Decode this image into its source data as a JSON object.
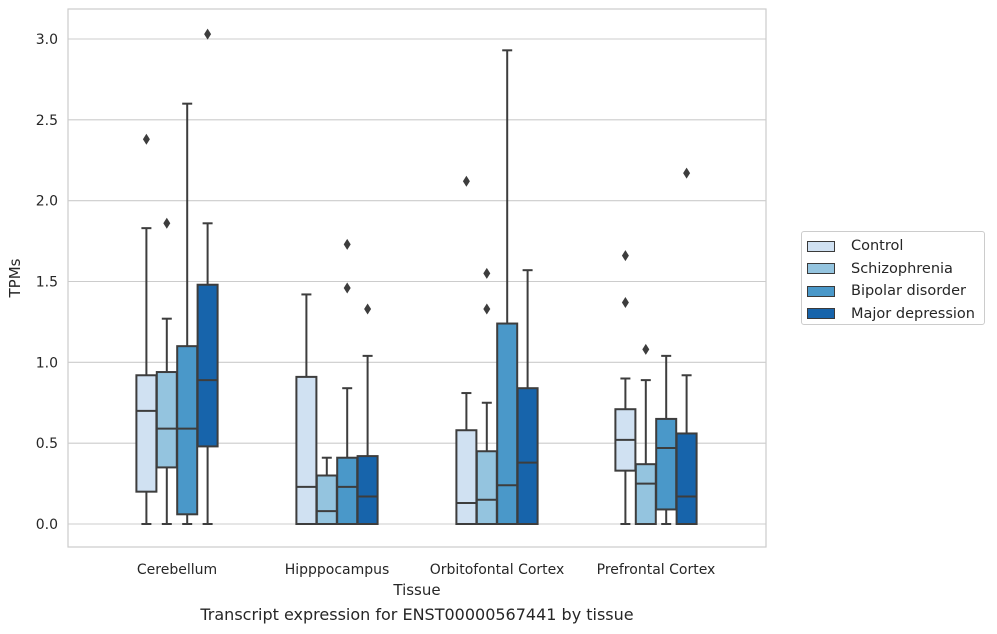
{
  "chart_data": {
    "type": "boxplot",
    "xlabel": "Tissue",
    "ylabel": "TPMs",
    "caption": "Transcript expression for ENST00000567441 by tissue",
    "ylim": [
      -0.15,
      3.2
    ],
    "yticks": [
      0.0,
      0.5,
      1.0,
      1.5,
      2.0,
      2.5,
      3.0
    ],
    "ytick_labels": [
      "0.0",
      "0.5",
      "1.0",
      "1.5",
      "2.0",
      "2.5",
      "3.0"
    ],
    "grid": "horizontal",
    "legend_position": "right",
    "categories": [
      "Cerebellum",
      "Hipppocampus",
      "Orbitofontal Cortex",
      "Prefrontal Cortex"
    ],
    "series": [
      {
        "name": "Control",
        "color": "#d0e1f2",
        "boxes": [
          {
            "whislo": 0.0,
            "q1": 0.2,
            "med": 0.7,
            "q3": 0.92,
            "whishi": 1.83,
            "fliers": [
              2.38
            ]
          },
          {
            "whislo": 0.0,
            "q1": 0.0,
            "med": 0.23,
            "q3": 0.91,
            "whishi": 1.42,
            "fliers": []
          },
          {
            "whislo": 0.0,
            "q1": 0.0,
            "med": 0.13,
            "q3": 0.58,
            "whishi": 0.81,
            "fliers": [
              2.12
            ]
          },
          {
            "whislo": 0.0,
            "q1": 0.33,
            "med": 0.52,
            "q3": 0.71,
            "whishi": 0.9,
            "fliers": [
              1.37,
              1.66
            ]
          }
        ]
      },
      {
        "name": "Schizophrenia",
        "color": "#94c4df",
        "boxes": [
          {
            "whislo": 0.0,
            "q1": 0.35,
            "med": 0.59,
            "q3": 0.94,
            "whishi": 1.27,
            "fliers": [
              1.86
            ]
          },
          {
            "whislo": 0.0,
            "q1": 0.0,
            "med": 0.08,
            "q3": 0.3,
            "whishi": 0.41,
            "fliers": []
          },
          {
            "whislo": 0.0,
            "q1": 0.0,
            "med": 0.15,
            "q3": 0.45,
            "whishi": 0.75,
            "fliers": [
              1.33,
              1.55
            ]
          },
          {
            "whislo": 0.0,
            "q1": 0.0,
            "med": 0.25,
            "q3": 0.37,
            "whishi": 0.89,
            "fliers": [
              1.08
            ]
          }
        ]
      },
      {
        "name": "Bipolar disorder",
        "color": "#4a98c9",
        "boxes": [
          {
            "whislo": 0.0,
            "q1": 0.06,
            "med": 0.59,
            "q3": 1.1,
            "whishi": 2.6,
            "fliers": []
          },
          {
            "whislo": 0.0,
            "q1": 0.0,
            "med": 0.23,
            "q3": 0.41,
            "whishi": 0.84,
            "fliers": [
              1.46,
              1.73
            ]
          },
          {
            "whislo": 0.0,
            "q1": 0.0,
            "med": 0.24,
            "q3": 1.24,
            "whishi": 2.93,
            "fliers": []
          },
          {
            "whislo": 0.0,
            "q1": 0.09,
            "med": 0.47,
            "q3": 0.65,
            "whishi": 1.04,
            "fliers": []
          }
        ]
      },
      {
        "name": "Major depression",
        "color": "#1764ab",
        "boxes": [
          {
            "whislo": 0.0,
            "q1": 0.48,
            "med": 0.89,
            "q3": 1.48,
            "whishi": 1.86,
            "fliers": [
              3.03
            ]
          },
          {
            "whislo": 0.0,
            "q1": 0.0,
            "med": 0.17,
            "q3": 0.42,
            "whishi": 1.04,
            "fliers": [
              1.33
            ]
          },
          {
            "whislo": 0.0,
            "q1": 0.0,
            "med": 0.38,
            "q3": 0.84,
            "whishi": 1.57,
            "fliers": []
          },
          {
            "whislo": 0.0,
            "q1": 0.0,
            "med": 0.17,
            "q3": 0.56,
            "whishi": 0.92,
            "fliers": [
              2.17
            ]
          }
        ]
      }
    ]
  },
  "legend": {
    "items": [
      {
        "label": "Control"
      },
      {
        "label": "Schizophrenia"
      },
      {
        "label": "Bipolar disorder"
      },
      {
        "label": "Major depression"
      }
    ]
  }
}
